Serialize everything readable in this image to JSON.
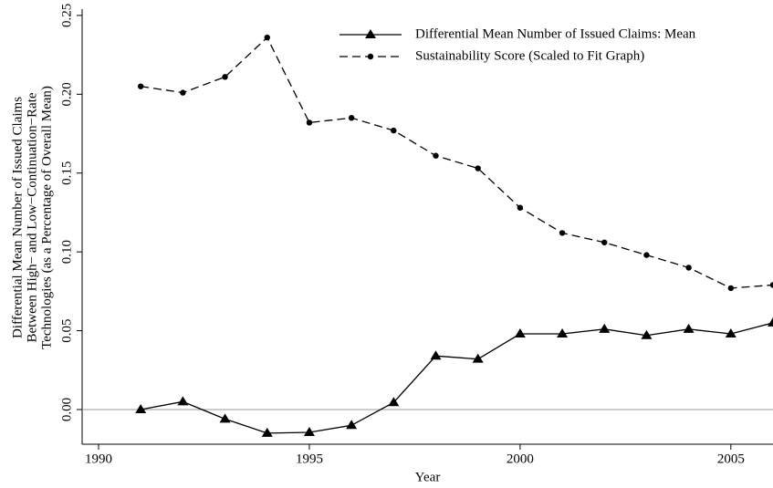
{
  "chart_data": {
    "type": "line",
    "xlabel": "Year",
    "ylabel": [
      "Differential Mean Number of Issued Claims",
      "Between High− and Low−Continuation−Rate",
      "Technologies (as a Percentage of Overall Mean)"
    ],
    "x": [
      1991,
      1992,
      1993,
      1994,
      1995,
      1996,
      1997,
      1998,
      1999,
      2000,
      2001,
      2002,
      2003,
      2004,
      2005,
      2006
    ],
    "series": [
      {
        "name": "Differential Mean Number of Issued Claims: Mean",
        "color": "#000000",
        "marker": "triangle",
        "dash": "solid",
        "values": [
          0.0,
          0.005,
          -0.006,
          -0.015,
          -0.0145,
          -0.01,
          0.0045,
          0.034,
          0.032,
          0.048,
          0.048,
          0.051,
          0.047,
          0.051,
          0.048,
          0.055
        ]
      },
      {
        "name": "Sustainability Score (Scaled to Fit Graph)",
        "color": "#000000",
        "marker": "circle",
        "dash": "dashed",
        "values": [
          0.205,
          0.201,
          0.211,
          0.236,
          0.182,
          0.185,
          0.177,
          0.161,
          0.153,
          0.128,
          0.112,
          0.106,
          0.098,
          0.09,
          0.077,
          0.079
        ]
      }
    ],
    "xlim": [
      1989.61,
      2006.0
    ],
    "xticks": [
      1990,
      1995,
      2000,
      2005
    ],
    "ylim": [
      -0.022,
      0.254
    ],
    "yticks": [
      {
        "value": 0,
        "label": "0.00"
      },
      {
        "value": 0.05,
        "label": "0.05"
      },
      {
        "value": 0.1,
        "label": "0.10"
      },
      {
        "value": 0.15,
        "label": "0.15"
      },
      {
        "value": 0.2,
        "label": "0.20"
      },
      {
        "value": 0.25,
        "label": "0.25"
      }
    ],
    "reference_line": 0,
    "reference_color": "#999999",
    "legend": "top-right"
  }
}
